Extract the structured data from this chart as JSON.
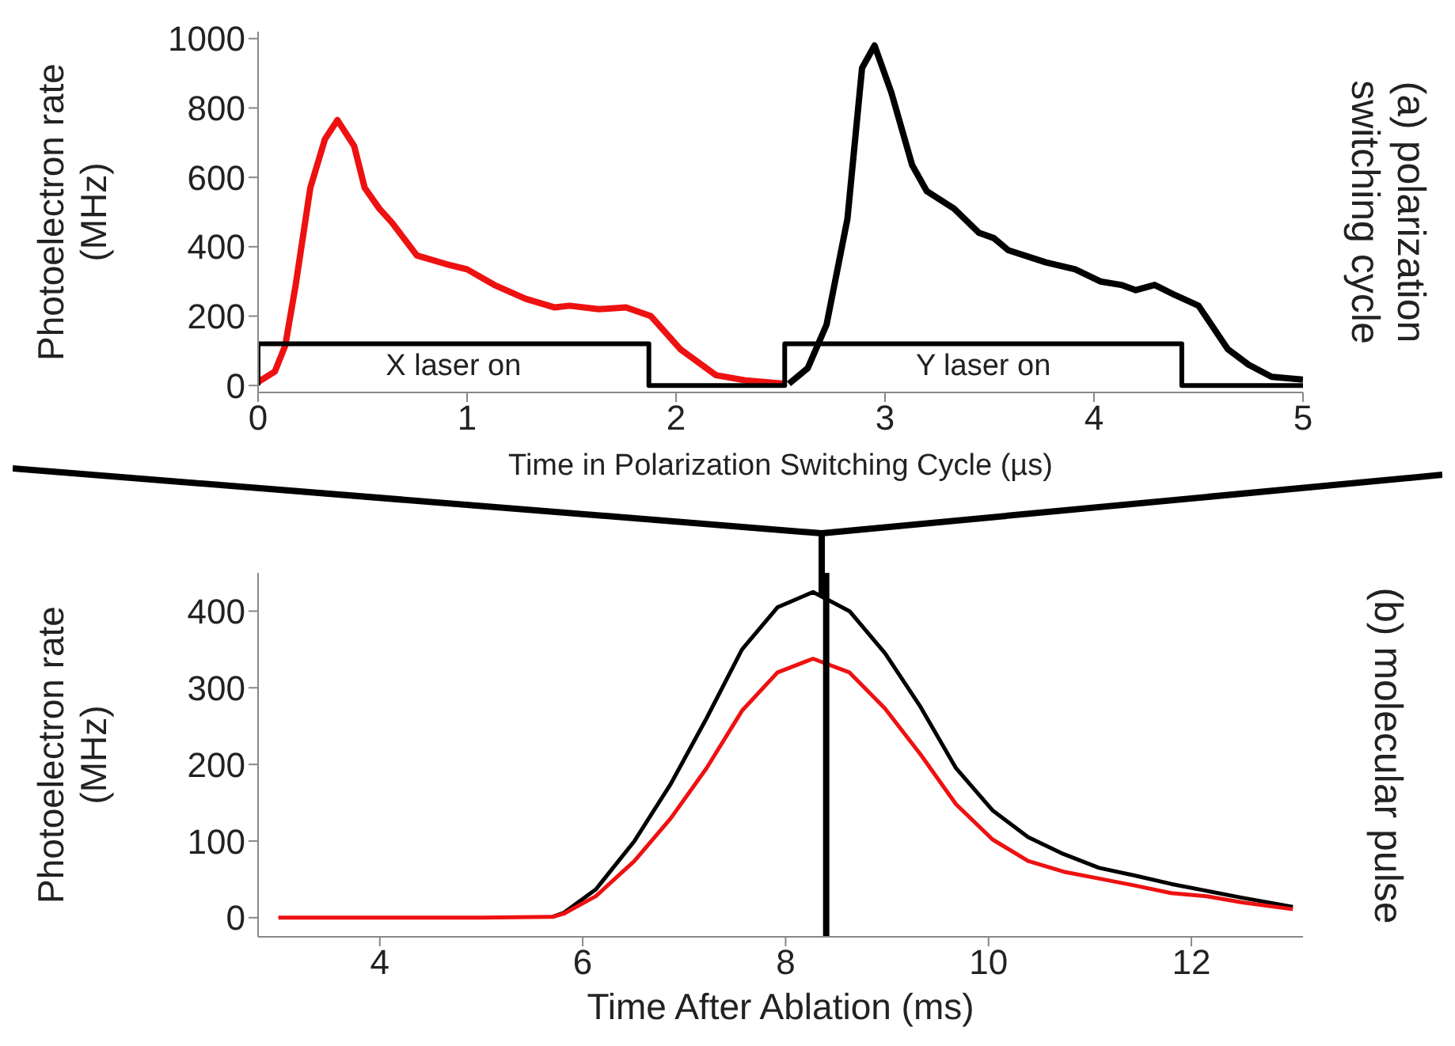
{
  "chart_data": [
    {
      "type": "line",
      "xlabel": "Time in Polarization Switching Cycle (µs)",
      "ylabel": "Photoelectron rate (MHz)",
      "xlim": [
        0,
        5
      ],
      "ylim": [
        -20,
        1020
      ],
      "xticks": [
        0,
        1,
        2,
        3,
        4,
        5
      ],
      "yticks": [
        0,
        200,
        400,
        600,
        800,
        1000
      ],
      "series": [
        {
          "color": "#ee1111",
          "x": [
            0,
            0.08,
            0.13,
            0.18,
            0.25,
            0.32,
            0.38,
            0.46,
            0.51,
            0.58,
            0.64,
            0.76,
            0.9,
            1.0,
            1.13,
            1.28,
            1.42,
            1.49,
            1.63,
            1.76,
            1.88,
            2.02,
            2.19,
            2.33,
            2.52
          ],
          "values": [
            10,
            40,
            115,
            290,
            570,
            710,
            765,
            690,
            570,
            510,
            470,
            375,
            350,
            335,
            290,
            250,
            225,
            230,
            220,
            225,
            200,
            105,
            30,
            15,
            5
          ]
        },
        {
          "color": "#000000",
          "x": [
            2.54,
            2.63,
            2.72,
            2.82,
            2.89,
            2.95,
            3.03,
            3.13,
            3.2,
            3.33,
            3.45,
            3.52,
            3.59,
            3.77,
            3.91,
            4.03,
            4.13,
            4.2,
            4.29,
            4.39,
            4.5,
            4.64,
            4.74,
            4.85,
            5
          ],
          "values": [
            5,
            50,
            175,
            480,
            915,
            980,
            845,
            635,
            560,
            510,
            440,
            425,
            390,
            355,
            335,
            300,
            290,
            275,
            290,
            260,
            230,
            105,
            60,
            25,
            17
          ]
        },
        {
          "type": "step",
          "color": "#000000",
          "x": [
            0,
            0,
            1.87,
            2.52,
            4.42,
            5
          ],
          "values": [
            0,
            120,
            0,
            120,
            0,
            0
          ]
        }
      ],
      "annotations": [
        "X laser on",
        "Y laser on",
        "(a) polarization switching cycle"
      ]
    },
    {
      "type": "line",
      "xlabel": "Time After Ablation (ms)",
      "ylabel": "Photoelectron rate (MHz)",
      "xlim": [
        2.8,
        13.1
      ],
      "ylim": [
        -25,
        450
      ],
      "xticks": [
        4,
        6,
        8,
        10,
        12
      ],
      "yticks": [
        0,
        100,
        200,
        300,
        400
      ],
      "series": [
        {
          "color": "#000000",
          "x": [
            5.7,
            5.81,
            6.13,
            6.51,
            6.87,
            7.22,
            7.57,
            7.92,
            8.27,
            8.63,
            8.98,
            9.33,
            9.68,
            10.04,
            10.39,
            10.74,
            11.09,
            11.44,
            11.8,
            12.15,
            12.5,
            13
          ],
          "values": [
            1,
            6,
            37,
            100,
            175,
            260,
            350,
            405,
            425,
            400,
            345,
            275,
            195,
            140,
            105,
            83,
            65,
            55,
            44,
            35,
            26,
            14
          ]
        },
        {
          "color": "#ee1111",
          "x": [
            3,
            4,
            5,
            5.7,
            5.81,
            6.13,
            6.51,
            6.87,
            7.22,
            7.57,
            7.92,
            8.27,
            8.63,
            8.98,
            9.33,
            9.68,
            10.04,
            10.39,
            10.74,
            11.09,
            11.44,
            11.8,
            12.15,
            12.5,
            13
          ],
          "values": [
            0,
            0,
            0,
            1,
            5,
            28,
            74,
            130,
            195,
            270,
            320,
            338,
            320,
            273,
            213,
            148,
            102,
            74,
            60,
            51,
            42,
            32,
            28,
            20,
            11
          ]
        }
      ],
      "ref_lines": [
        {
          "axis": "x",
          "value": 8.4,
          "color": "#000000"
        }
      ],
      "annotations": [
        "(b) molecular pulse"
      ]
    }
  ]
}
